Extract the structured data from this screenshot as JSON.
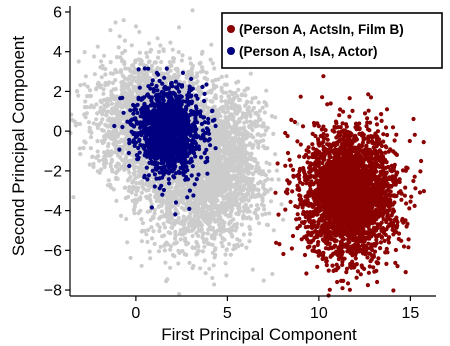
{
  "chart_data": {
    "type": "scatter",
    "title": "",
    "xlabel": "First Principal Component",
    "ylabel": "Second Principal Component",
    "xlim": [
      -3.6,
      16.4
    ],
    "ylim": [
      -8.3,
      6.3
    ],
    "xticks": [
      0,
      5,
      10,
      15
    ],
    "yticks": [
      -8,
      -6,
      -4,
      -2,
      0,
      2,
      4,
      6
    ],
    "grid": false,
    "legend_position": "top-right",
    "background_points": {
      "color": "#cccccc",
      "count": 5200,
      "components": [
        {
          "weight": 0.55,
          "mean": [
            1.2,
            0.4
          ],
          "sd": [
            1.6,
            1.5
          ],
          "rho": -0.1
        },
        {
          "weight": 0.3,
          "mean": [
            3.4,
            -2.9
          ],
          "sd": [
            1.5,
            1.5
          ],
          "rho": 0.0
        },
        {
          "weight": 0.15,
          "mean": [
            5.2,
            -1.0
          ],
          "sd": [
            1.0,
            1.7
          ],
          "rho": 0.0
        }
      ]
    },
    "series": [
      {
        "name": "(Person A, ActsIn, Film B)",
        "color": "#8b0000",
        "count": 3000,
        "mean": [
          11.7,
          -3.2
        ],
        "sd": [
          1.25,
          1.55
        ],
        "rho": 0.0
      },
      {
        "name": "(Person A, IsA, Actor)",
        "color": "#000080",
        "count": 1500,
        "mean": [
          1.8,
          0.0
        ],
        "sd": [
          0.85,
          1.05
        ],
        "rho": -0.05
      }
    ]
  }
}
